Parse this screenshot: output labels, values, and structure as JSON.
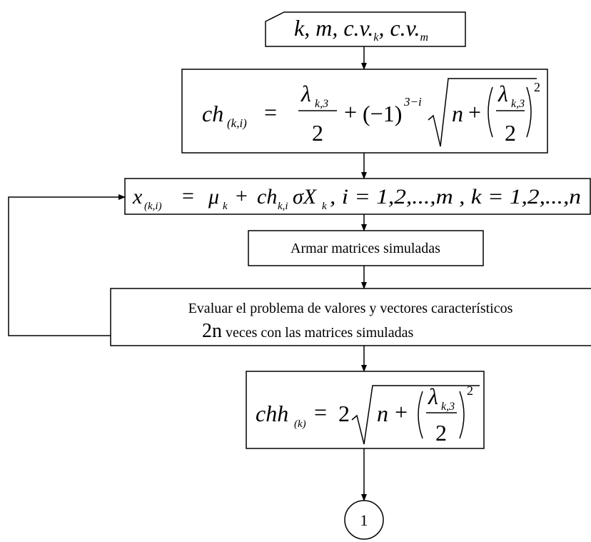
{
  "nodes": [
    {
      "parts": [
        "k, m, c.v.",
        "k",
        ", c.v.",
        "m"
      ]
    },
    {
      "parts": [
        "ch",
        "(k,i)",
        "=",
        "λ",
        "k,3",
        "2",
        "+",
        "(−1)",
        "3−i",
        "n",
        "+",
        "λ",
        "k,3",
        "2",
        "2"
      ]
    },
    {
      "parts": [
        "x",
        "(k,i)",
        "=",
        "μ",
        "k",
        "+",
        "ch",
        "k,i",
        "σX",
        "k",
        ", i = 1,2,...,m , k = 1,2,...,n"
      ]
    },
    {
      "parts": [
        "Armar matrices simuladas"
      ]
    },
    {
      "parts": [
        "Evaluar el problema de valores y vectores característicos",
        "2n",
        "veces con las matrices simuladas"
      ]
    },
    {
      "parts": [
        "chh",
        "(k)",
        "=",
        "2",
        "n",
        "+",
        "λ",
        "k,3",
        "2",
        "2"
      ]
    },
    {
      "parts": [
        "1"
      ]
    }
  ]
}
